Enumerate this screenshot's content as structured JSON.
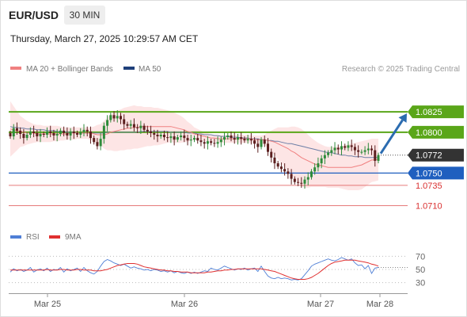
{
  "header": {
    "symbol": "EUR/USD",
    "timeframe": "30 MIN",
    "datetime": "Thursday, March 27, 2025 10:29:57 AM CET"
  },
  "legend": {
    "ma20_bb": "MA 20 + Bollinger Bands",
    "ma50": "MA 50",
    "credit": "Research © 2025 Trading Central",
    "rsi": "RSI",
    "rsi_ma": "9MA"
  },
  "colors": {
    "candle_up": "#2e8b3a",
    "candle_down": "#5c1f1f",
    "bb_fill": "#fde2e2",
    "ma20": "#f08080",
    "ma50": "#6d7fa6",
    "resistance": "#5aa619",
    "support_strong": "#1f5fbf",
    "support": "#e05a5a",
    "current_price_bg": "#333333",
    "arrow": "#2b6cb0",
    "rsi_line": "#4f7fd6",
    "rsi_ma_line": "#e03030"
  },
  "chart_data": [
    {
      "type": "candlestick",
      "title": "EUR/USD",
      "timeframe": "30 MIN",
      "x_ticks": [
        "Mar 25",
        "Mar 26",
        "Mar 27",
        "Mar 28"
      ],
      "price_levels": [
        {
          "label": "1.0825",
          "value": 1.0825,
          "kind": "resistance"
        },
        {
          "label": "1.0800",
          "value": 1.08,
          "kind": "resistance"
        },
        {
          "label": "1.0772",
          "value": 1.0772,
          "kind": "current"
        },
        {
          "label": "1.0750",
          "value": 1.075,
          "kind": "pivot"
        },
        {
          "label": "1.0735",
          "value": 1.0735,
          "kind": "support"
        },
        {
          "label": "1.0710",
          "value": 1.071,
          "kind": "support"
        }
      ],
      "ylim": [
        1.0695,
        1.0865
      ],
      "n_bars": 111,
      "price_series": [
        1.0795,
        1.0805,
        1.0802,
        1.0798,
        1.0793,
        1.0797,
        1.0801,
        1.0799,
        1.0795,
        1.0798,
        1.0797,
        1.0801,
        1.0799,
        1.0796,
        1.0798,
        1.0802,
        1.0799,
        1.0796,
        1.0801,
        1.0799,
        1.0797,
        1.08,
        1.0803,
        1.0801,
        1.0793,
        1.0788,
        1.0783,
        1.0792,
        1.0808,
        1.0815,
        1.0821,
        1.0817,
        1.082,
        1.0816,
        1.081,
        1.0808,
        1.081,
        1.0806,
        1.0805,
        1.0808,
        1.0803,
        1.0801,
        1.0799,
        1.0797,
        1.0795,
        1.0797,
        1.0794,
        1.0793,
        1.0795,
        1.0791,
        1.0794,
        1.0796,
        1.0793,
        1.079,
        1.0791,
        1.0793,
        1.079,
        1.0788,
        1.0786,
        1.0789,
        1.0787,
        1.0786,
        1.0788,
        1.0791,
        1.0794,
        1.0796,
        1.0793,
        1.0791,
        1.0794,
        1.0792,
        1.079,
        1.0792,
        1.079,
        1.0786,
        1.0782,
        1.0791,
        1.0786,
        1.0776,
        1.0769,
        1.0762,
        1.0758,
        1.0755,
        1.0752,
        1.0749,
        1.0743,
        1.0739,
        1.0738,
        1.0737,
        1.0742,
        1.0745,
        1.0752,
        1.0757,
        1.0762,
        1.0768,
        1.0772,
        1.0775,
        1.0778,
        1.0781,
        1.0779,
        1.0783,
        1.0781,
        1.0784,
        1.0782,
        1.0778,
        1.0776,
        1.0776,
        1.0778,
        1.078,
        1.0778,
        1.0765,
        1.0772
      ],
      "ma20_series": [
        1.0804,
        1.0803,
        1.0802,
        1.0801,
        1.08,
        1.0799,
        1.0799,
        1.0799,
        1.0798,
        1.0798,
        1.0798,
        1.0798,
        1.0798,
        1.0798,
        1.0798,
        1.0798,
        1.0798,
        1.0798,
        1.0799,
        1.0799,
        1.0799,
        1.0799,
        1.0799,
        1.0799,
        1.0799,
        1.0798,
        1.0797,
        1.0797,
        1.0797,
        1.0798,
        1.08,
        1.0801,
        1.0802,
        1.0803,
        1.0804,
        1.0805,
        1.0805,
        1.0806,
        1.0806,
        1.0807,
        1.0807,
        1.0807,
        1.0807,
        1.0807,
        1.0807,
        1.0807,
        1.0807,
        1.0807,
        1.0807,
        1.0806,
        1.0805,
        1.0804,
        1.0803,
        1.0801,
        1.08,
        1.0798,
        1.0797,
        1.0796,
        1.0795,
        1.0794,
        1.0793,
        1.0793,
        1.0792,
        1.0792,
        1.0792,
        1.0792,
        1.0792,
        1.0792,
        1.0792,
        1.0792,
        1.0792,
        1.0792,
        1.0792,
        1.0791,
        1.0791,
        1.0791,
        1.0791,
        1.079,
        1.0789,
        1.0788,
        1.0786,
        1.0784,
        1.0782,
        1.078,
        1.0777,
        1.0775,
        1.0772,
        1.0769,
        1.0767,
        1.0765,
        1.0763,
        1.0761,
        1.076,
        1.0759,
        1.0758,
        1.0757,
        1.0757,
        1.0757,
        1.0757,
        1.0757,
        1.0757,
        1.0757,
        1.0757,
        1.0758,
        1.0759,
        1.076,
        1.0762,
        1.0764,
        1.0766,
        1.0766,
        1.0767
      ],
      "bb_upper": [
        1.0838,
        1.0832,
        1.0826,
        1.082,
        1.0817,
        1.0814,
        1.0812,
        1.081,
        1.0809,
        1.0809,
        1.0808,
        1.0808,
        1.0808,
        1.0808,
        1.0808,
        1.0807,
        1.0806,
        1.0806,
        1.0806,
        1.0806,
        1.0806,
        1.0806,
        1.0806,
        1.0806,
        1.0806,
        1.0807,
        1.0809,
        1.081,
        1.0814,
        1.0818,
        1.0822,
        1.0825,
        1.0827,
        1.0828,
        1.083,
        1.0831,
        1.0832,
        1.0833,
        1.0832,
        1.0832,
        1.0831,
        1.0831,
        1.0831,
        1.083,
        1.083,
        1.0829,
        1.0828,
        1.0827,
        1.0826,
        1.0824,
        1.0822,
        1.082,
        1.0817,
        1.0813,
        1.081,
        1.0806,
        1.0804,
        1.0802,
        1.08,
        1.0799,
        1.0797,
        1.0797,
        1.0797,
        1.0797,
        1.0796,
        1.0797,
        1.0797,
        1.0797,
        1.0797,
        1.0797,
        1.0797,
        1.0797,
        1.0796,
        1.0796,
        1.0796,
        1.0796,
        1.0797,
        1.08,
        1.0802,
        1.0804,
        1.0806,
        1.0806,
        1.0806,
        1.0806,
        1.0807,
        1.0807,
        1.0806,
        1.0804,
        1.0801,
        1.0797,
        1.0793,
        1.079,
        1.0787,
        1.0785,
        1.0783,
        1.0782,
        1.0782,
        1.0782,
        1.0782,
        1.0783,
        1.0784,
        1.0785,
        1.0786,
        1.0787,
        1.0788,
        1.0789,
        1.079,
        1.0791,
        1.0792,
        1.0792,
        1.0792
      ],
      "bb_lower": [
        1.077,
        1.0774,
        1.0778,
        1.0782,
        1.0783,
        1.0785,
        1.0786,
        1.0787,
        1.0788,
        1.0788,
        1.0788,
        1.0788,
        1.0788,
        1.0789,
        1.0789,
        1.079,
        1.079,
        1.0791,
        1.0791,
        1.0791,
        1.0792,
        1.0792,
        1.0792,
        1.0792,
        1.0791,
        1.0789,
        1.0786,
        1.0784,
        1.078,
        1.0778,
        1.0778,
        1.0777,
        1.0777,
        1.0778,
        1.0778,
        1.0779,
        1.0779,
        1.078,
        1.078,
        1.0781,
        1.0782,
        1.0783,
        1.0783,
        1.0784,
        1.0784,
        1.0785,
        1.0786,
        1.0787,
        1.0788,
        1.0787,
        1.0787,
        1.0787,
        1.0788,
        1.0788,
        1.079,
        1.079,
        1.079,
        1.079,
        1.0789,
        1.0789,
        1.0789,
        1.0788,
        1.0788,
        1.0787,
        1.0787,
        1.0787,
        1.0787,
        1.0787,
        1.0787,
        1.0787,
        1.0787,
        1.0787,
        1.0787,
        1.0786,
        1.0786,
        1.0786,
        1.0785,
        1.078,
        1.0776,
        1.0772,
        1.0767,
        1.0762,
        1.0757,
        1.0753,
        1.0748,
        1.0743,
        1.0738,
        1.0734,
        1.0732,
        1.0732,
        1.0733,
        1.0733,
        1.0733,
        1.0733,
        1.0733,
        1.0732,
        1.0732,
        1.0732,
        1.0732,
        1.0731,
        1.073,
        1.0729,
        1.0729,
        1.0729,
        1.0729,
        1.073,
        1.0733,
        1.0736,
        1.0739,
        1.074,
        1.0741
      ],
      "ma50_series": [
        1.0807,
        1.0806,
        1.0806,
        1.0805,
        1.0805,
        1.0804,
        1.0804,
        1.0804,
        1.0803,
        1.0803,
        1.0803,
        1.0802,
        1.0802,
        1.0802,
        1.0801,
        1.0801,
        1.0801,
        1.08,
        1.08,
        1.08,
        1.0799,
        1.0799,
        1.0799,
        1.0799,
        1.0799,
        1.0799,
        1.0799,
        1.0799,
        1.0799,
        1.08,
        1.08,
        1.08,
        1.08,
        1.08,
        1.08,
        1.08,
        1.08,
        1.08,
        1.08,
        1.0801,
        1.0801,
        1.0801,
        1.0801,
        1.0801,
        1.0801,
        1.0801,
        1.0801,
        1.0801,
        1.08,
        1.08,
        1.08,
        1.08,
        1.08,
        1.0799,
        1.0799,
        1.0799,
        1.0798,
        1.0798,
        1.0797,
        1.0797,
        1.0797,
        1.0796,
        1.0796,
        1.0795,
        1.0795,
        1.0795,
        1.0794,
        1.0794,
        1.0794,
        1.0793,
        1.0793,
        1.0793,
        1.0792,
        1.0792,
        1.0792,
        1.0791,
        1.0791,
        1.079,
        1.079,
        1.0789,
        1.0789,
        1.0788,
        1.0787,
        1.0786,
        1.0786,
        1.0785,
        1.0784,
        1.0783,
        1.0782,
        1.0781,
        1.078,
        1.0779,
        1.0778,
        1.0777,
        1.0776,
        1.0775,
        1.0775,
        1.0774,
        1.0773,
        1.0772,
        1.0772,
        1.0771,
        1.0771,
        1.077,
        1.077,
        1.077,
        1.0769,
        1.0769,
        1.0769,
        1.0769,
        1.0769
      ]
    },
    {
      "type": "line",
      "title": "RSI",
      "y_ticks": [
        70,
        50,
        30
      ],
      "ylim": [
        20,
        80
      ],
      "series": [
        {
          "name": "RSI",
          "values": [
            46,
            51,
            48,
            50,
            47,
            49,
            53,
            46,
            49,
            51,
            48,
            52,
            47,
            50,
            49,
            53,
            46,
            51,
            48,
            50,
            52,
            47,
            53,
            48,
            45,
            43,
            47,
            55,
            62,
            65,
            63,
            60,
            58,
            56,
            58,
            55,
            52,
            54,
            52,
            51,
            49,
            50,
            48,
            50,
            49,
            47,
            48,
            46,
            48,
            45,
            47,
            45,
            44,
            46,
            44,
            46,
            44,
            46,
            48,
            47,
            52,
            50,
            49,
            52,
            55,
            53,
            51,
            49,
            51,
            50,
            52,
            49,
            51,
            52,
            47,
            55,
            47,
            40,
            37,
            36,
            38,
            36,
            37,
            36,
            34,
            35,
            34,
            36,
            42,
            48,
            55,
            58,
            60,
            62,
            64,
            66,
            64,
            63,
            65,
            68,
            66,
            64,
            66,
            60,
            56,
            57,
            51,
            56,
            44,
            52,
            53
          ]
        },
        {
          "name": "9MA",
          "values": [
            49,
            49,
            49,
            49,
            49,
            49,
            49,
            49,
            49,
            49,
            49,
            50,
            49,
            49,
            49,
            50,
            50,
            49,
            49,
            49,
            50,
            50,
            49,
            49,
            49,
            48,
            48,
            48,
            49,
            50,
            52,
            54,
            56,
            57,
            58,
            59,
            59,
            59,
            58,
            56,
            54,
            53,
            52,
            51,
            50,
            49,
            49,
            48,
            48,
            47,
            47,
            46,
            46,
            46,
            45,
            45,
            45,
            45,
            45,
            46,
            46,
            47,
            48,
            48,
            49,
            49,
            50,
            50,
            51,
            51,
            51,
            51,
            51,
            51,
            51,
            51,
            50,
            49,
            48,
            47,
            45,
            43,
            41,
            39,
            37,
            36,
            35,
            35,
            35,
            36,
            38,
            41,
            44,
            48,
            52,
            56,
            59,
            61,
            62,
            63,
            64,
            64,
            64,
            64,
            63,
            62,
            61,
            60,
            58,
            57,
            55
          ]
        }
      ]
    }
  ]
}
